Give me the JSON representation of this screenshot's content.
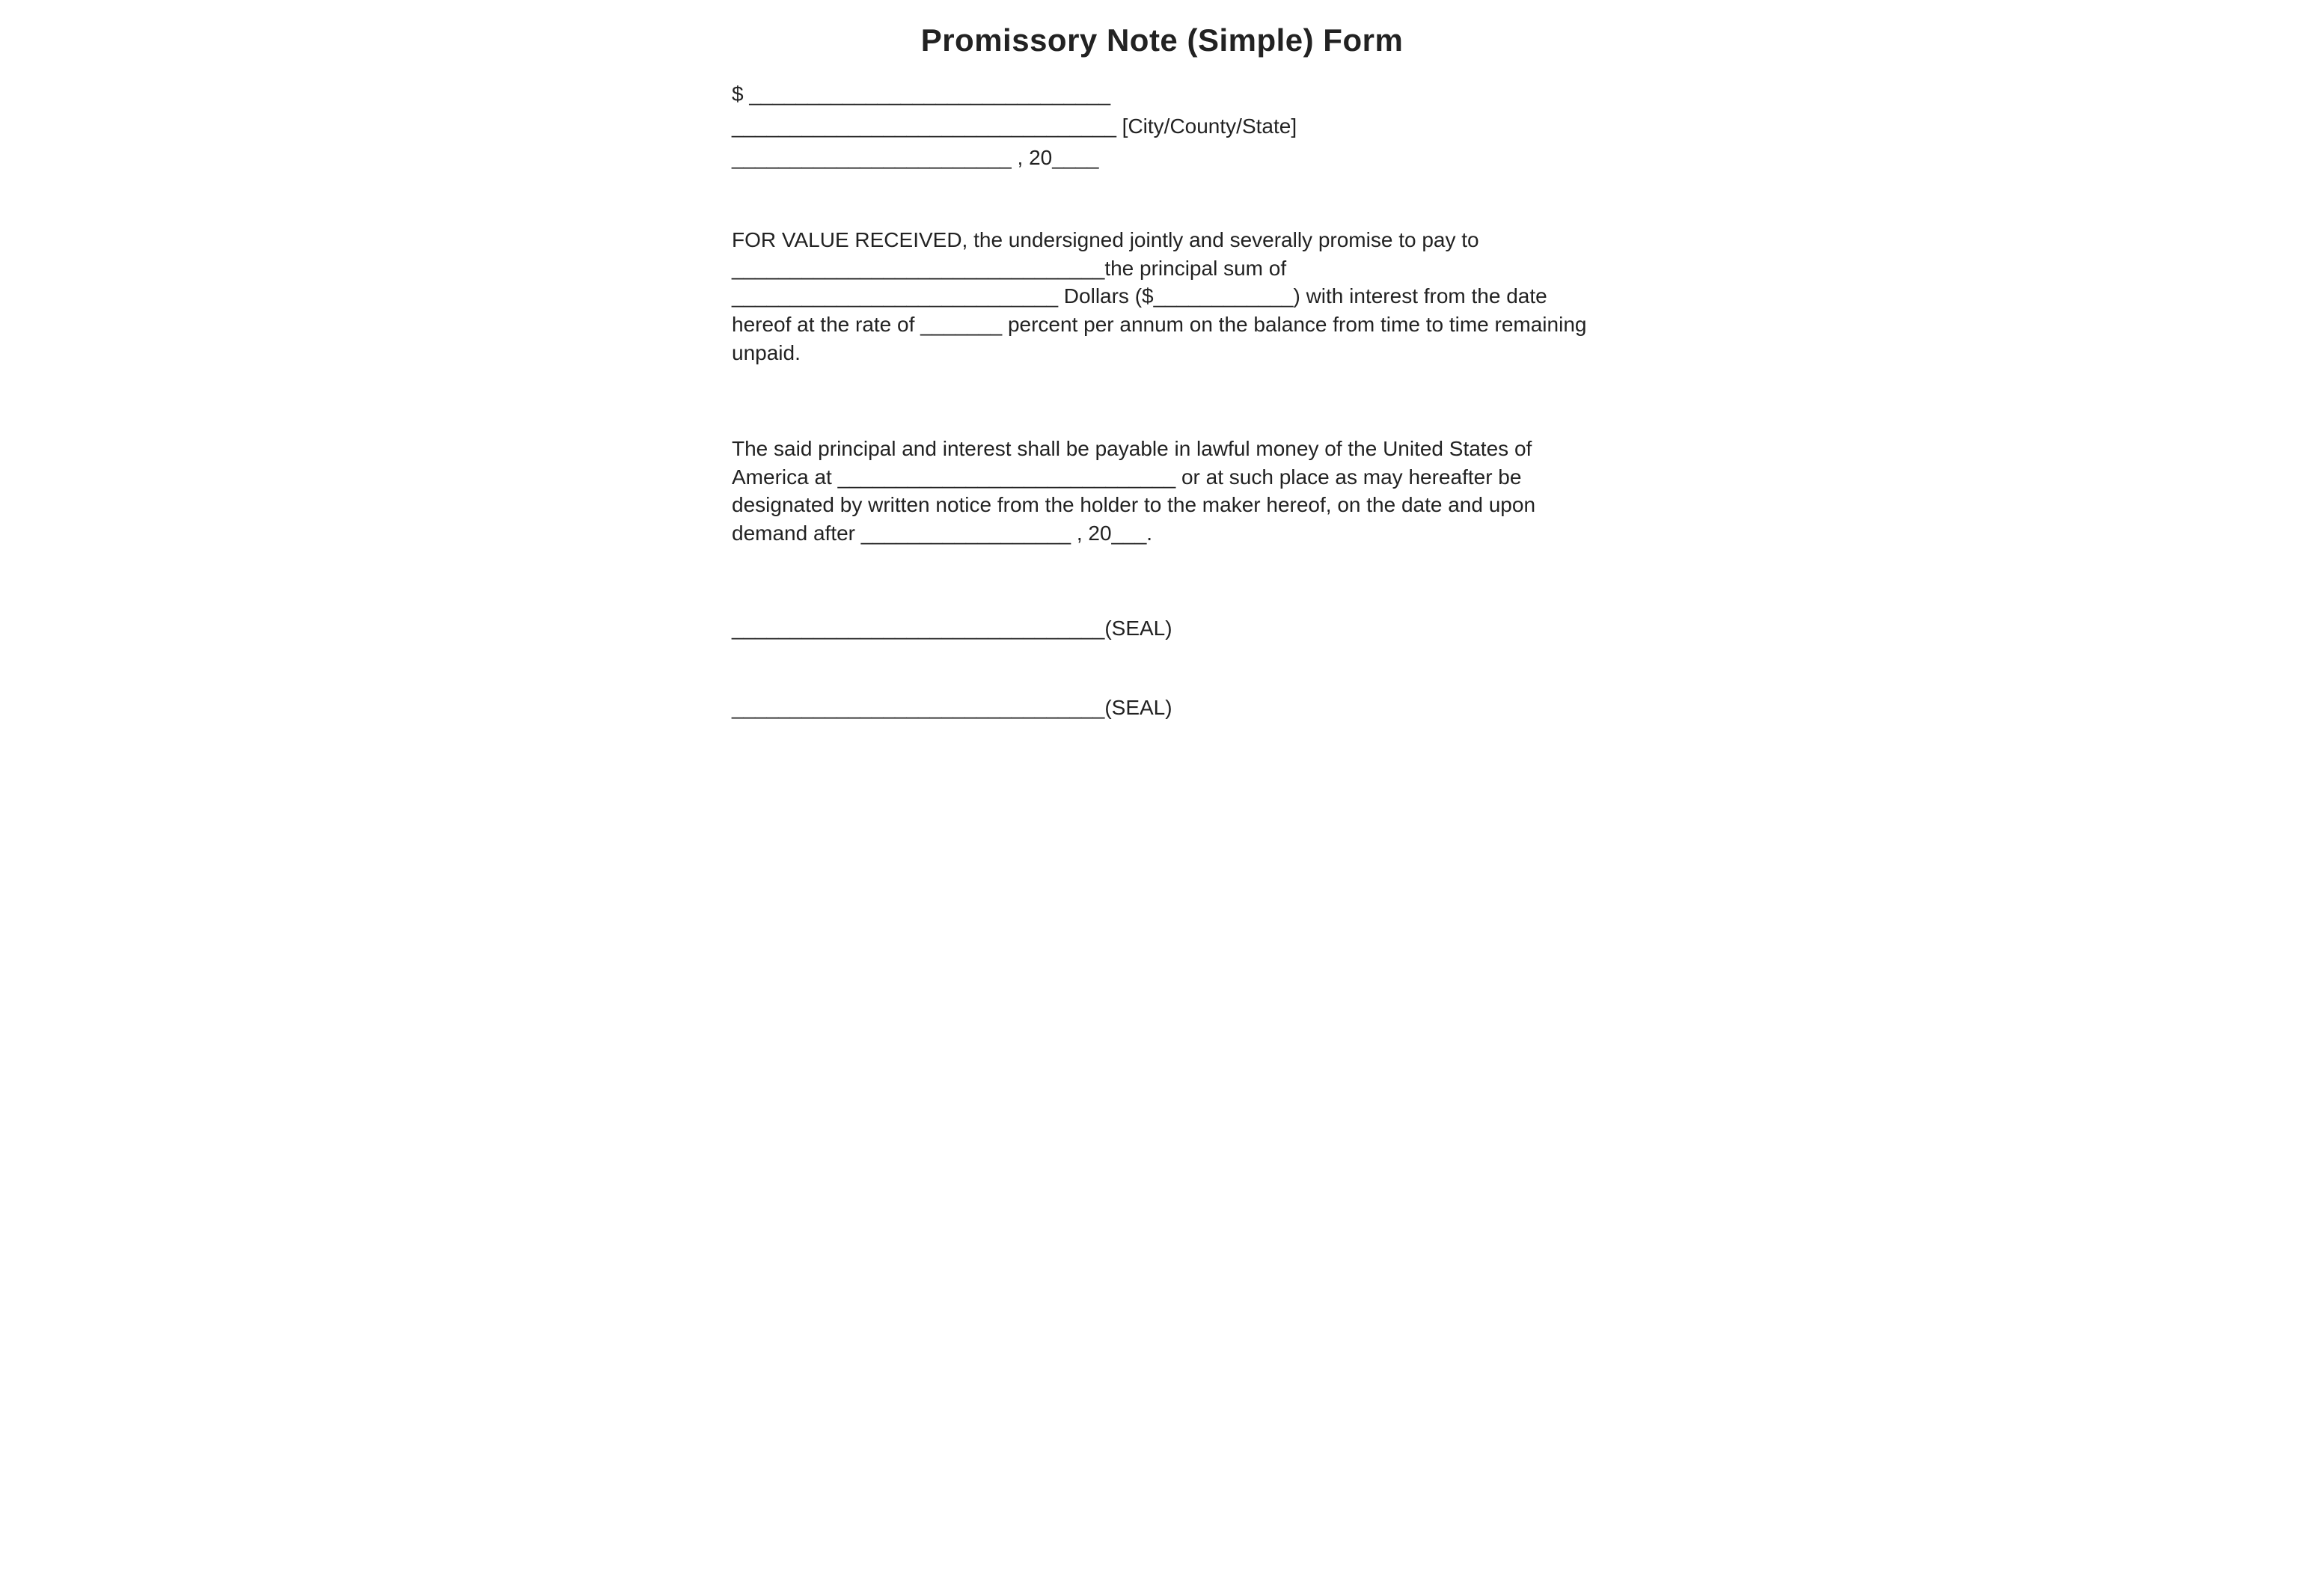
{
  "title": "Promissory Note (Simple) Form",
  "header": {
    "line1": "$ _______________________________",
    "line2": "_________________________________  [City/County/State]",
    "line3": "________________________ , 20____"
  },
  "para1": "FOR VALUE RECEIVED,  the undersigned jointly and severally promise to pay to ________________________________the principal sum of ____________________________ Dollars ($____________) with interest from the date hereof at the rate of _______ percent per annum on the balance from time to time remaining unpaid.",
  "para2": "The said principal and interest shall be payable in lawful money of the United States of America at _____________________________ or at such place as may hereafter be designated by written notice from the holder to the maker hereof, on the date and upon demand after __________________ , 20___.",
  "signature1": "________________________________(SEAL)",
  "signature2": "________________________________(SEAL)"
}
